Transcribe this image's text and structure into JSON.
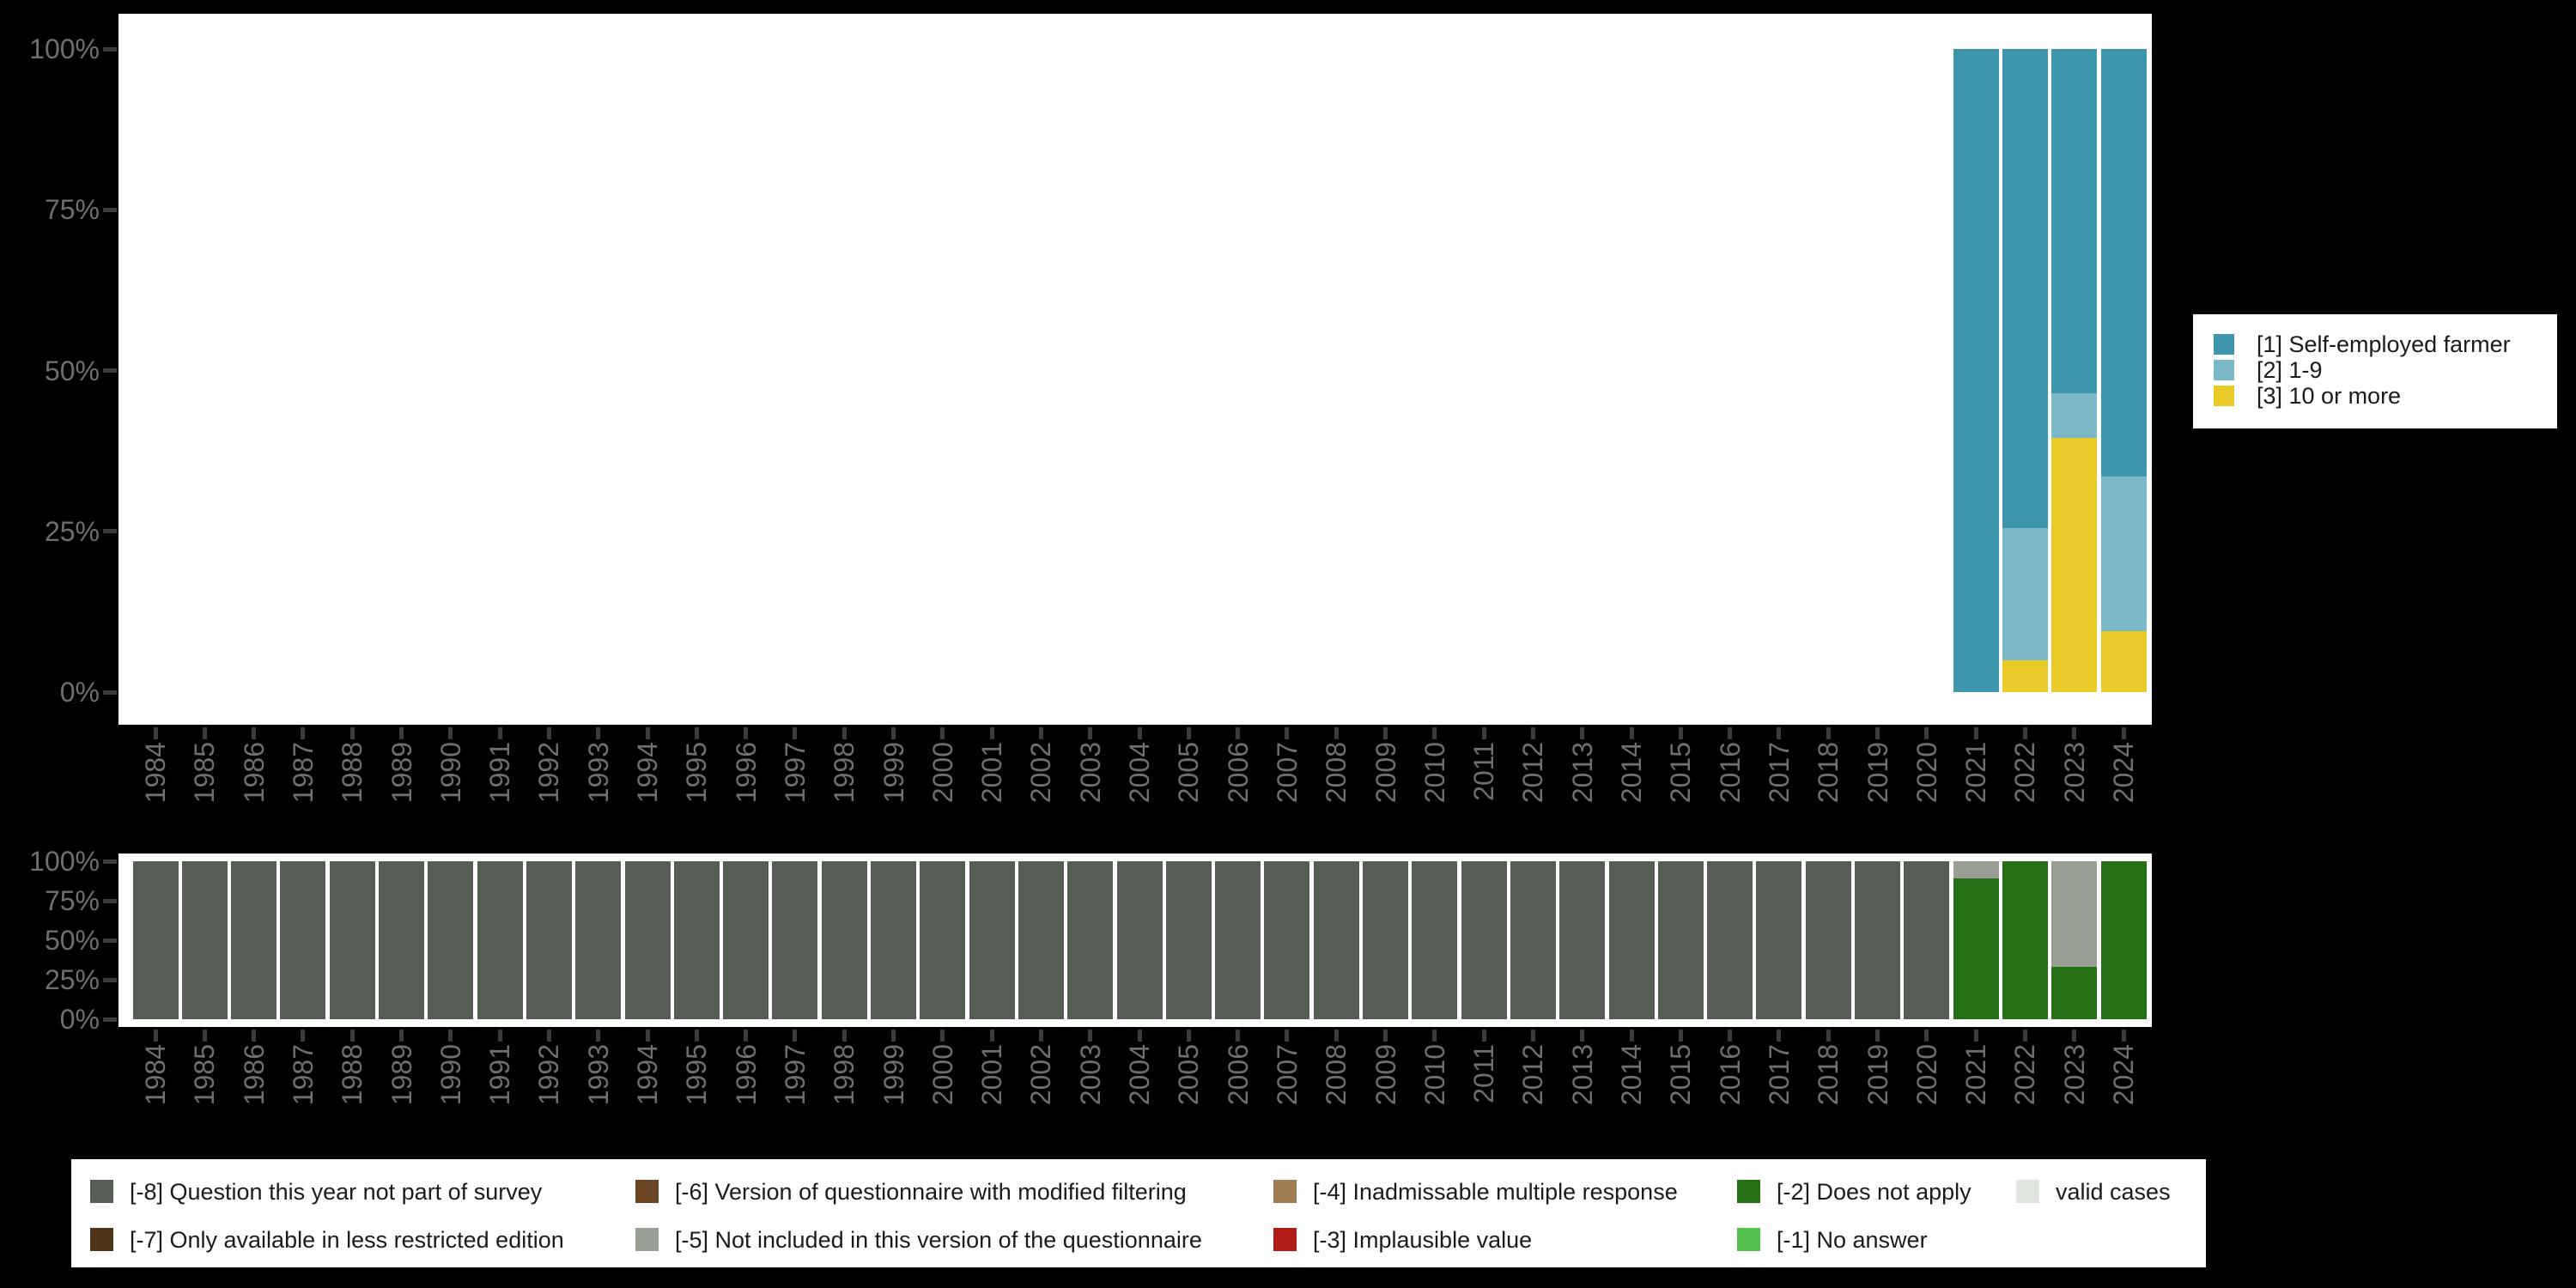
{
  "colors": {
    "background": "#000000",
    "plot_background": "#ffffff",
    "axis_text": "#6f6f6f",
    "axis_tick": "#383d3b",
    "legend_background": "#ffffff",
    "legend_text": "#1b1b1b"
  },
  "chart_data": [
    {
      "id": "valid-responses-chart",
      "type": "bar",
      "subtype": "stacked-percent",
      "title": "",
      "xlabel": "",
      "ylabel": "",
      "ylim": [
        0,
        100
      ],
      "y_tick_labels": [
        "0%",
        "25%",
        "50%",
        "75%",
        "100%"
      ],
      "y_tick_values": [
        0,
        25,
        50,
        75,
        100
      ],
      "grid": false,
      "legend_position": "right",
      "categories": [
        "1984",
        "1985",
        "1986",
        "1987",
        "1988",
        "1989",
        "1990",
        "1991",
        "1992",
        "1993",
        "1994",
        "1995",
        "1996",
        "1997",
        "1998",
        "1999",
        "2000",
        "2001",
        "2002",
        "2003",
        "2004",
        "2005",
        "2006",
        "2007",
        "2008",
        "2009",
        "2010",
        "2011",
        "2012",
        "2013",
        "2014",
        "2015",
        "2016",
        "2017",
        "2018",
        "2019",
        "2020",
        "2021",
        "2022",
        "2023",
        "2024"
      ],
      "series": [
        {
          "label": "[1] Self-employed farmer",
          "color": "#3e96ad",
          "values_by_year": {
            "2021": 100,
            "2022": 74.5,
            "2023": 53.5,
            "2024": 66.5
          }
        },
        {
          "label": "[2] 1-9",
          "color": "#7bb8c8",
          "values_by_year": {
            "2022": 20.5,
            "2023": 7,
            "2024": 24
          }
        },
        {
          "label": "[3] 10 or more",
          "color": "#eaca28",
          "values_by_year": {
            "2022": 5,
            "2023": 39.5,
            "2024": 9.5
          }
        }
      ]
    },
    {
      "id": "missing-values-chart",
      "type": "bar",
      "subtype": "stacked-percent",
      "title": "",
      "xlabel": "",
      "ylabel": "",
      "ylim": [
        0,
        100
      ],
      "y_tick_labels": [
        "0%",
        "25%",
        "50%",
        "75%",
        "100%"
      ],
      "y_tick_values": [
        0,
        25,
        50,
        75,
        100
      ],
      "grid": false,
      "legend_position": "bottom",
      "categories": [
        "1984",
        "1985",
        "1986",
        "1987",
        "1988",
        "1989",
        "1990",
        "1991",
        "1992",
        "1993",
        "1994",
        "1995",
        "1996",
        "1997",
        "1998",
        "1999",
        "2000",
        "2001",
        "2002",
        "2003",
        "2004",
        "2005",
        "2006",
        "2007",
        "2008",
        "2009",
        "2010",
        "2011",
        "2012",
        "2013",
        "2014",
        "2015",
        "2016",
        "2017",
        "2018",
        "2019",
        "2020",
        "2021",
        "2022",
        "2023",
        "2024"
      ],
      "series": [
        {
          "label": "[-8] Question this year not part of survey",
          "color": "#565d55",
          "values_by_year": {
            "1984": 100,
            "1985": 100,
            "1986": 100,
            "1987": 100,
            "1988": 100,
            "1989": 100,
            "1990": 100,
            "1991": 100,
            "1992": 100,
            "1993": 100,
            "1994": 100,
            "1995": 100,
            "1996": 100,
            "1997": 100,
            "1998": 100,
            "1999": 100,
            "2000": 100,
            "2001": 100,
            "2002": 100,
            "2003": 100,
            "2004": 100,
            "2005": 100,
            "2006": 100,
            "2007": 100,
            "2008": 100,
            "2009": 100,
            "2010": 100,
            "2011": 100,
            "2012": 100,
            "2013": 100,
            "2014": 100,
            "2015": 100,
            "2016": 100,
            "2017": 100,
            "2018": 100,
            "2019": 100,
            "2020": 100
          }
        },
        {
          "label": "[-5] Not included in this version of the questionnaire",
          "color": "#989e93",
          "values_by_year": {
            "2021": 11,
            "2023": 67
          }
        },
        {
          "label": "[-2] Does not apply",
          "color": "#267016",
          "values_by_year": {
            "2021": 89,
            "2022": 100,
            "2023": 33,
            "2024": 100
          }
        }
      ]
    }
  ],
  "missing_legend": {
    "columns": [
      [
        {
          "label": "[-8] Question this year not part of survey",
          "color": "#565d55"
        },
        {
          "label": "[-7] Only available in less restricted edition",
          "color": "#4d3318"
        }
      ],
      [
        {
          "label": "[-6] Version of questionnaire with modified filtering",
          "color": "#6b4423"
        },
        {
          "label": "[-5] Not included in this version of the questionnaire",
          "color": "#989e93"
        }
      ],
      [
        {
          "label": "[-4] Inadmissable multiple response",
          "color": "#a07c52"
        },
        {
          "label": "[-3] Implausible value",
          "color": "#b01d18"
        }
      ],
      [
        {
          "label": "[-2] Does not apply",
          "color": "#267016"
        },
        {
          "label": "[-1] No answer",
          "color": "#54c24c"
        }
      ],
      [
        {
          "label": "valid cases",
          "color": "#e2e6e0"
        }
      ]
    ]
  }
}
